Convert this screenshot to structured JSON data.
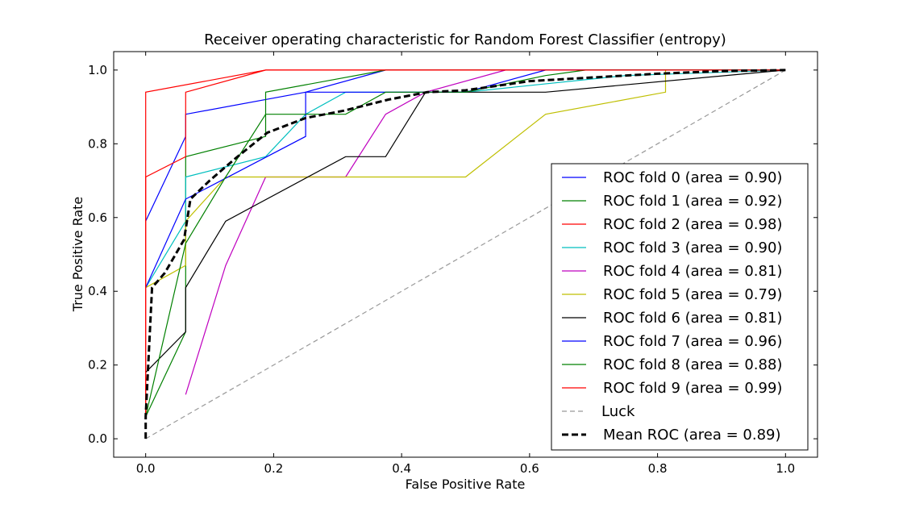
{
  "chart_data": {
    "type": "line",
    "title": "Receiver operating characteristic for Random Forest Classifier (entropy)",
    "xlabel": "False Positive Rate",
    "ylabel": "True Positive Rate",
    "xlim": [
      -0.05,
      1.05
    ],
    "ylim": [
      -0.05,
      1.05
    ],
    "xticks": [
      0.0,
      0.2,
      0.4,
      0.6,
      0.8,
      1.0
    ],
    "yticks": [
      0.0,
      0.2,
      0.4,
      0.6,
      0.8,
      1.0
    ],
    "xtick_labels": [
      "0.0",
      "0.2",
      "0.4",
      "0.6",
      "0.8",
      "1.0"
    ],
    "ytick_labels": [
      "0.0",
      "0.2",
      "0.4",
      "0.6",
      "0.8",
      "1.0"
    ],
    "grid": false,
    "legend_position": "lower-right",
    "series": [
      {
        "name": "ROC fold 0 (area = 0.90)",
        "color": "#0000ff",
        "style": "solid",
        "points": [
          [
            0.0,
            0.59
          ],
          [
            0.0625,
            0.82
          ],
          [
            0.0625,
            0.88
          ],
          [
            0.25,
            0.94
          ],
          [
            0.375,
            1.0
          ],
          [
            1.0,
            1.0
          ]
        ]
      },
      {
        "name": "ROC fold 1 (area = 0.92)",
        "color": "#008000",
        "style": "solid",
        "points": [
          [
            0.0,
            0.06
          ],
          [
            0.0625,
            0.29
          ],
          [
            0.0625,
            0.765
          ],
          [
            0.1875,
            0.82
          ],
          [
            0.1875,
            0.94
          ],
          [
            0.375,
            1.0
          ],
          [
            1.0,
            1.0
          ]
        ]
      },
      {
        "name": "ROC fold 2 (area = 0.98)",
        "color": "#ff0000",
        "style": "solid",
        "points": [
          [
            0.0,
            0.06
          ],
          [
            0.0,
            0.94
          ],
          [
            0.1875,
            1.0
          ],
          [
            1.0,
            1.0
          ]
        ]
      },
      {
        "name": "ROC fold 3 (area = 0.90)",
        "color": "#00bfbf",
        "style": "solid",
        "points": [
          [
            0.0,
            0.41
          ],
          [
            0.0625,
            0.59
          ],
          [
            0.0625,
            0.71
          ],
          [
            0.1875,
            0.765
          ],
          [
            0.25,
            0.88
          ],
          [
            0.3125,
            0.94
          ],
          [
            0.5,
            0.94
          ],
          [
            0.75,
            0.985
          ],
          [
            1.0,
            1.0
          ]
        ]
      },
      {
        "name": "ROC fold 4 (area = 0.81)",
        "color": "#bf00bf",
        "style": "solid",
        "points": [
          [
            0.0625,
            0.12
          ],
          [
            0.125,
            0.47
          ],
          [
            0.1875,
            0.71
          ],
          [
            0.3125,
            0.71
          ],
          [
            0.375,
            0.88
          ],
          [
            0.4375,
            0.94
          ],
          [
            0.5625,
            1.0
          ],
          [
            1.0,
            1.0
          ]
        ]
      },
      {
        "name": "ROC fold 5 (area = 0.79)",
        "color": "#bfbf00",
        "style": "solid",
        "points": [
          [
            0.0,
            0.41
          ],
          [
            0.0625,
            0.47
          ],
          [
            0.0625,
            0.59
          ],
          [
            0.125,
            0.71
          ],
          [
            0.5,
            0.71
          ],
          [
            0.625,
            0.88
          ],
          [
            0.8125,
            0.94
          ],
          [
            0.8125,
            1.0
          ],
          [
            1.0,
            1.0
          ]
        ]
      },
      {
        "name": "ROC fold 6 (area = 0.81)",
        "color": "#000000",
        "style": "solid",
        "points": [
          [
            0.0,
            0.18
          ],
          [
            0.0625,
            0.29
          ],
          [
            0.0625,
            0.41
          ],
          [
            0.125,
            0.59
          ],
          [
            0.3125,
            0.765
          ],
          [
            0.375,
            0.765
          ],
          [
            0.4375,
            0.94
          ],
          [
            0.625,
            0.94
          ],
          [
            1.0,
            1.0
          ]
        ]
      },
      {
        "name": "ROC fold 7 (area = 0.96)",
        "color": "#0000ff",
        "style": "solid",
        "points": [
          [
            0.0,
            0.41
          ],
          [
            0.0625,
            0.65
          ],
          [
            0.25,
            0.82
          ],
          [
            0.25,
            0.94
          ],
          [
            0.5,
            0.94
          ],
          [
            0.625,
            1.0
          ],
          [
            1.0,
            1.0
          ]
        ]
      },
      {
        "name": "ROC fold 8 (area = 0.88)",
        "color": "#008000",
        "style": "solid",
        "points": [
          [
            0.0,
            0.06
          ],
          [
            0.0625,
            0.53
          ],
          [
            0.125,
            0.71
          ],
          [
            0.1875,
            0.88
          ],
          [
            0.3125,
            0.88
          ],
          [
            0.375,
            0.94
          ],
          [
            0.5,
            0.94
          ],
          [
            0.625,
            0.985
          ],
          [
            0.6875,
            1.0
          ],
          [
            1.0,
            1.0
          ]
        ]
      },
      {
        "name": "ROC fold 9 (area = 0.99)",
        "color": "#ff0000",
        "style": "solid",
        "points": [
          [
            0.0,
            0.06
          ],
          [
            0.0,
            0.71
          ],
          [
            0.0625,
            0.765
          ],
          [
            0.0625,
            0.94
          ],
          [
            0.1875,
            1.0
          ],
          [
            1.0,
            1.0
          ]
        ]
      },
      {
        "name": "Luck",
        "color": "#999999",
        "style": "dashed",
        "points": [
          [
            0.0,
            0.0
          ],
          [
            1.0,
            1.0
          ]
        ]
      },
      {
        "name": "Mean ROC (area = 0.89)",
        "color": "#000000",
        "style": "mean",
        "points": [
          [
            0.0,
            0.0
          ],
          [
            0.0,
            0.06
          ],
          [
            0.01,
            0.41
          ],
          [
            0.03,
            0.45
          ],
          [
            0.06,
            0.54
          ],
          [
            0.07,
            0.65
          ],
          [
            0.1,
            0.7
          ],
          [
            0.14,
            0.76
          ],
          [
            0.19,
            0.83
          ],
          [
            0.25,
            0.87
          ],
          [
            0.31,
            0.89
          ],
          [
            0.38,
            0.92
          ],
          [
            0.44,
            0.94
          ],
          [
            0.5,
            0.945
          ],
          [
            0.6,
            0.97
          ],
          [
            0.7,
            0.98
          ],
          [
            0.8,
            0.99
          ],
          [
            0.9,
            0.997
          ],
          [
            1.0,
            1.0
          ]
        ]
      }
    ]
  }
}
